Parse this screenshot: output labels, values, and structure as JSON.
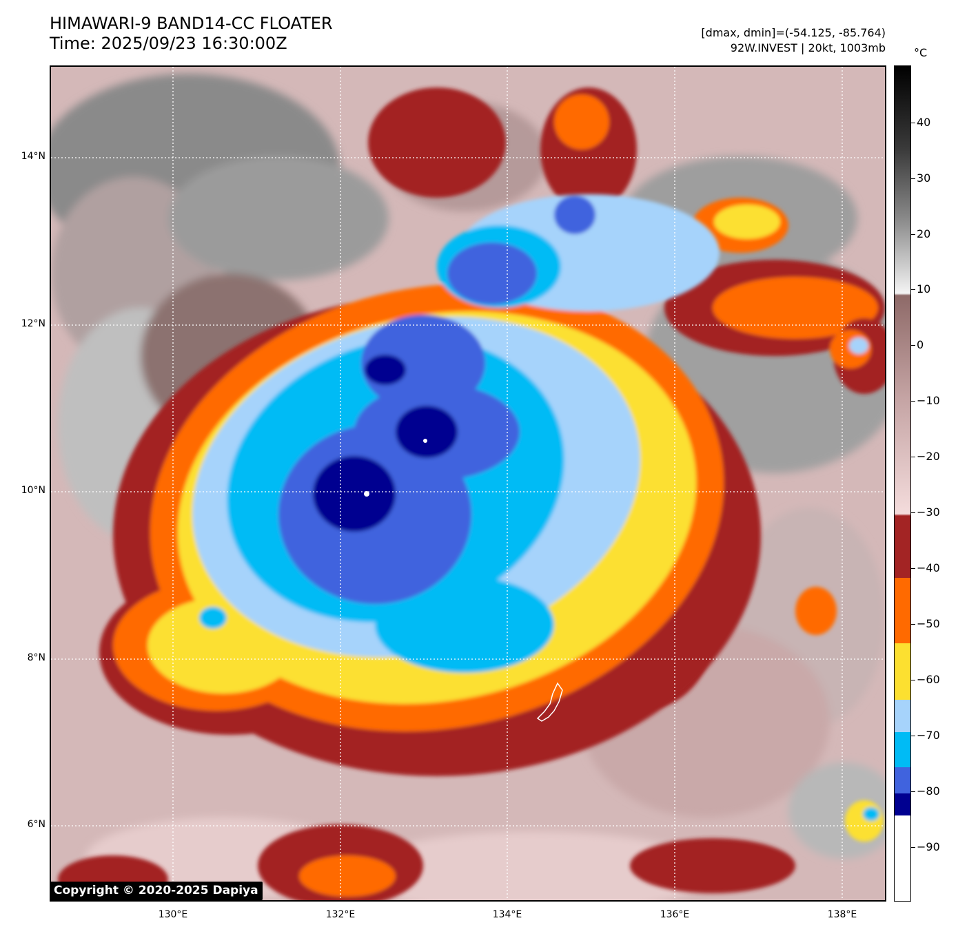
{
  "header": {
    "title_line1": "HIMAWARI-9 BAND14-CC FLOATER",
    "title_line2": "Time: 2025/09/23 16:30:00Z",
    "range_text": "[dmax, dmin]=(-54.125, -85.764)",
    "storm_text": "92W.INVEST | 20kt, 1003mb"
  },
  "map": {
    "lat_labels": [
      "14°N",
      "12°N",
      "10°N",
      "8°N",
      "6°N"
    ],
    "lon_labels": [
      "130°E",
      "132°E",
      "134°E",
      "136°E",
      "138°E"
    ],
    "copyright": "Copyright © 2020-2025 Dapiya"
  },
  "colorbar": {
    "unit": "°C",
    "labels": [
      "40",
      "30",
      "20",
      "10",
      "0",
      "−10",
      "−20",
      "−30",
      "−40",
      "−50",
      "−60",
      "−70",
      "−80",
      "−90"
    ],
    "colors": {
      "above_10": "#888888",
      "warm_0": "#8e6a68",
      "minus_30": "#f4dcdc",
      "minus_40": "#a32424",
      "minus_50": "#ff6a00",
      "minus_60": "#fce030",
      "minus_70": "#a6d3fb",
      "minus_75": "#00bbf5",
      "minus_80": "#4063de",
      "minus_85": "#000090",
      "below_85": "#ffffff"
    }
  }
}
